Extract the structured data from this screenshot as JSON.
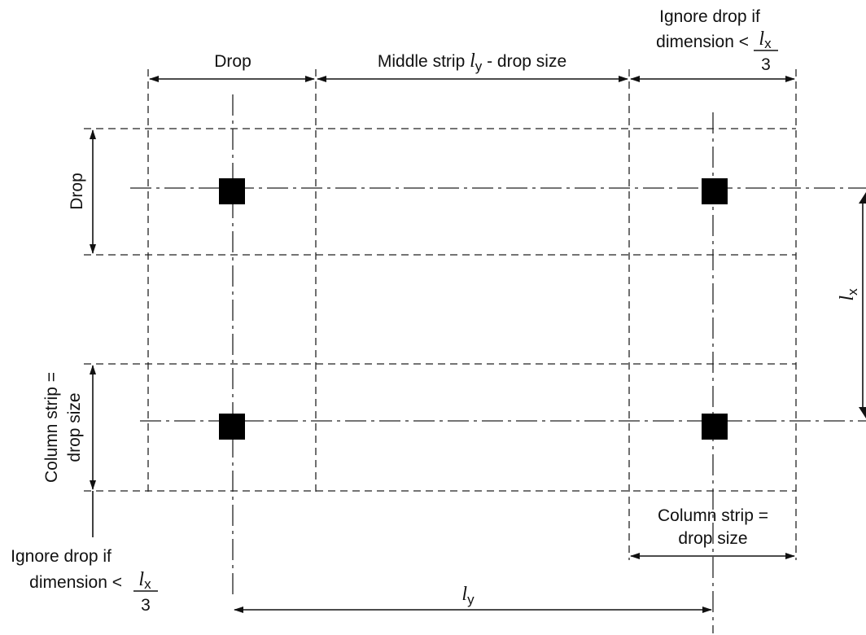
{
  "labels": {
    "drop_top": "Drop",
    "middle_strip_prefix": "Middle strip ",
    "middle_strip_var": "l",
    "middle_strip_sub": "y",
    "middle_strip_suffix": " - drop size",
    "ignore_top_line1": "Ignore drop if",
    "ignore_top_line2": "dimension <",
    "frac_num_var": "l",
    "frac_num_sub": "x",
    "frac_den": "3",
    "drop_left": "Drop",
    "col_strip_left_line1": "Column strip =",
    "col_strip_left_line2": "drop size",
    "ignore_bottom_line1": "Ignore drop if",
    "ignore_bottom_line2": "dimension <",
    "col_strip_right_line1": "Column strip =",
    "col_strip_right_line2": "drop size",
    "ly_var": "l",
    "ly_sub": "y",
    "lx_var": "l",
    "lx_sub": "x"
  }
}
